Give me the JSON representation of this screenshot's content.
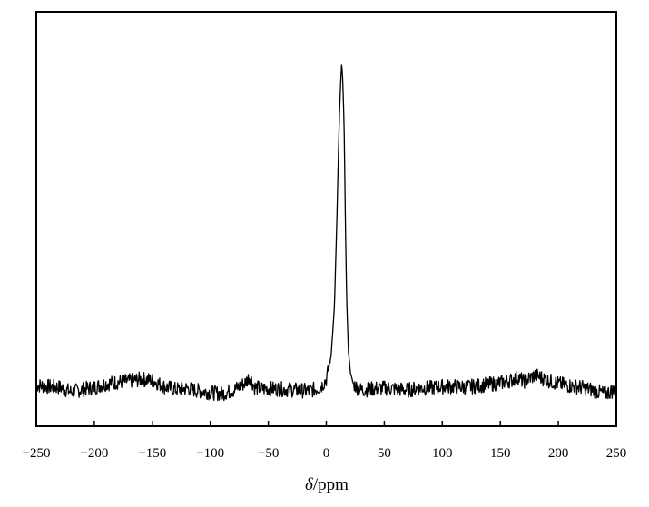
{
  "chart_data": {
    "type": "line",
    "title": "",
    "xlabel": "δ/ppm",
    "xlabel_symbol": "δ",
    "xlabel_unit": "/ppm",
    "ylabel": "",
    "xlim": [
      -250,
      250
    ],
    "ylim": [
      0,
      1
    ],
    "x_ticks": [
      -250,
      -200,
      -150,
      -100,
      -50,
      0,
      50,
      100,
      150,
      200,
      250
    ],
    "x_tick_labels": [
      "−250",
      "−200",
      "−150",
      "−100",
      "−50",
      "0",
      "50",
      "100",
      "150",
      "200",
      "250"
    ],
    "y_axis_ticks_labeled": false,
    "grid": false,
    "legend": "none",
    "line_color": "#000000",
    "series": [
      {
        "x": [
          -250,
          -240,
          -230,
          -220,
          -210,
          -200,
          -190,
          -180,
          -170,
          -160,
          -150,
          -140,
          -130,
          -120,
          -110,
          -100,
          -90,
          -80,
          -70,
          -66,
          -62,
          -55,
          -45,
          -35,
          -25,
          -15,
          -8,
          -4,
          0,
          4,
          7,
          9,
          10.5,
          11.5,
          12.5,
          13.2,
          14,
          14.8,
          15.5,
          16.5,
          17.5,
          19,
          21,
          23,
          26,
          30,
          40,
          50,
          60,
          70,
          80,
          90,
          100,
          110,
          120,
          130,
          140,
          150,
          160,
          165,
          170,
          175,
          180,
          185,
          190,
          200,
          210,
          220,
          230,
          240,
          250
        ],
        "y": [
          0.114,
          0.11,
          0.108,
          0.095,
          0.102,
          0.108,
          0.118,
          0.122,
          0.125,
          0.13,
          0.128,
          0.11,
          0.102,
          0.105,
          0.098,
          0.094,
          0.09,
          0.1,
          0.12,
          0.138,
          0.108,
          0.104,
          0.104,
          0.102,
          0.1,
          0.098,
          0.104,
          0.112,
          0.13,
          0.19,
          0.33,
          0.56,
          0.76,
          0.88,
          0.96,
          1.0,
          0.975,
          0.9,
          0.8,
          0.56,
          0.36,
          0.21,
          0.145,
          0.12,
          0.108,
          0.1,
          0.104,
          0.106,
          0.104,
          0.1,
          0.106,
          0.106,
          0.11,
          0.11,
          0.108,
          0.112,
          0.116,
          0.12,
          0.128,
          0.136,
          0.124,
          0.132,
          0.142,
          0.135,
          0.128,
          0.118,
          0.112,
          0.108,
          0.1,
          0.09,
          0.102
        ]
      }
    ]
  }
}
